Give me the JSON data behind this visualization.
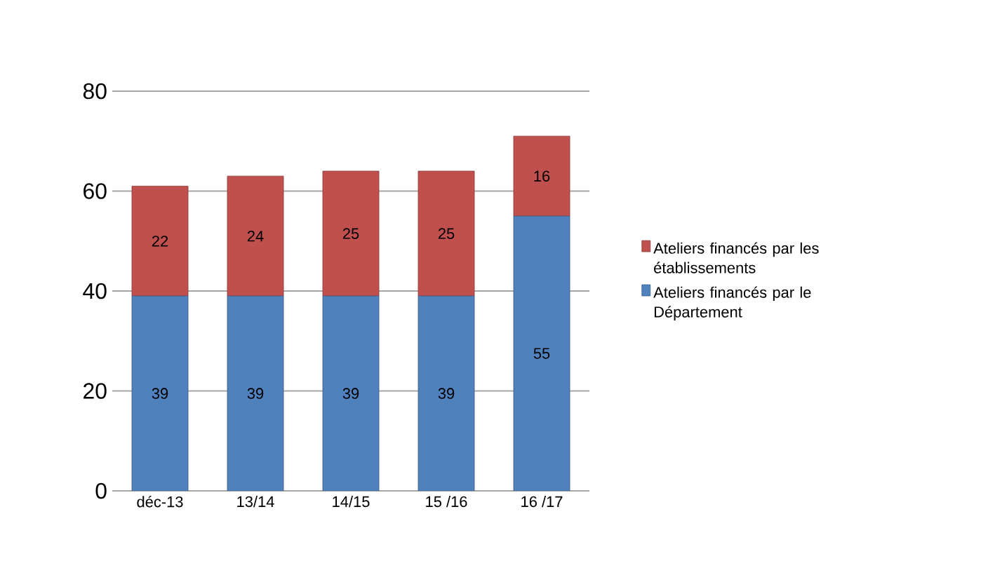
{
  "chart_data": {
    "type": "bar",
    "stacked": true,
    "categories": [
      "déc-13",
      "13/14",
      "14/15",
      "15 /16",
      "16 /17"
    ],
    "series": [
      {
        "name": "Ateliers financés par le Département",
        "color": "#4f81bd",
        "values": [
          39,
          39,
          39,
          39,
          55
        ]
      },
      {
        "name": "Ateliers financés par les établissements",
        "color": "#c0504d",
        "values": [
          22,
          24,
          25,
          25,
          16
        ]
      }
    ],
    "ylim": [
      0,
      80
    ],
    "yticks": [
      0,
      20,
      40,
      60,
      80
    ],
    "grid": "y",
    "legend": "right",
    "data_labels": true
  }
}
